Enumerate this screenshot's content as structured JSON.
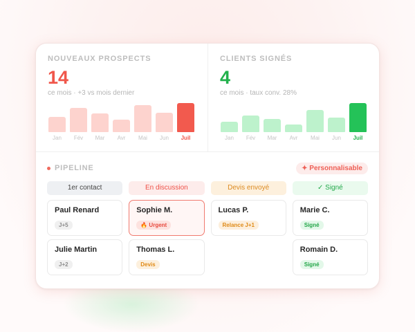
{
  "stats": [
    {
      "label": "NOUVEAUX PROSPECTS",
      "value": "14",
      "subtitle": "ce mois · +3 vs mois dernier",
      "accent": "#f0574b",
      "bar_color": "#fdd3ce",
      "bar_active_color": "#f25a4e",
      "months": [
        "Jan",
        "Fév",
        "Mar",
        "Avr",
        "Mai",
        "Jun",
        "Juil"
      ],
      "bar_levels": [
        0.52,
        0.83,
        0.64,
        0.43,
        0.93,
        0.67,
        1.0
      ]
    },
    {
      "label": "CLIENTS SIGNÉS",
      "value": "4",
      "subtitle": "ce mois · taux conv. 28%",
      "accent": "#22b14c",
      "bar_color": "#bdf2cc",
      "bar_active_color": "#24c258",
      "months": [
        "Jan",
        "Fév",
        "Mar",
        "Avr",
        "Mai",
        "Jun",
        "Juil"
      ],
      "bar_levels": [
        0.35,
        0.58,
        0.45,
        0.25,
        0.75,
        0.5,
        1.0
      ]
    }
  ],
  "pipeline": {
    "title": "PIPELINE",
    "custom_label": "✦ Personnalisable",
    "columns": [
      {
        "title": "1er contact",
        "head_bg": "#eef0f3",
        "head_color": "#444444",
        "cards": [
          {
            "name": "Paul Renard",
            "tag": "J+5",
            "tag_bg": "#f0f0f0",
            "tag_color": "#8a8a8a",
            "urgent": false
          },
          {
            "name": "Julie Martin",
            "tag": "J+2",
            "tag_bg": "#f0f0f0",
            "tag_color": "#8a8a8a",
            "urgent": false
          }
        ]
      },
      {
        "title": "En discussion",
        "head_bg": "#fdeceb",
        "head_color": "#ee5148",
        "cards": [
          {
            "name": "Sophie M.",
            "tag": "🔥 Urgent",
            "tag_bg": "#fde2df",
            "tag_color": "#e8493d",
            "urgent": true
          },
          {
            "name": "Thomas L.",
            "tag": "Devis",
            "tag_bg": "#fdf0dd",
            "tag_color": "#e08a16",
            "urgent": false
          }
        ]
      },
      {
        "title": "Devis envoyé",
        "head_bg": "#fdf0dd",
        "head_color": "#dc8a20",
        "cards": [
          {
            "name": "Lucas P.",
            "tag": "Relance J+1",
            "tag_bg": "#fdefdc",
            "tag_color": "#df8a17",
            "urgent": false
          }
        ]
      },
      {
        "title": "✓ Signé",
        "head_bg": "#eafaee",
        "head_color": "#22a84a",
        "cards": [
          {
            "name": "Marie C.",
            "tag": "Signé",
            "tag_bg": "#e3f8e9",
            "tag_color": "#23a648",
            "urgent": false
          },
          {
            "name": "Romain D.",
            "tag": "Signé",
            "tag_bg": "#e3f8e9",
            "tag_color": "#23a648",
            "urgent": false
          }
        ]
      }
    ]
  }
}
